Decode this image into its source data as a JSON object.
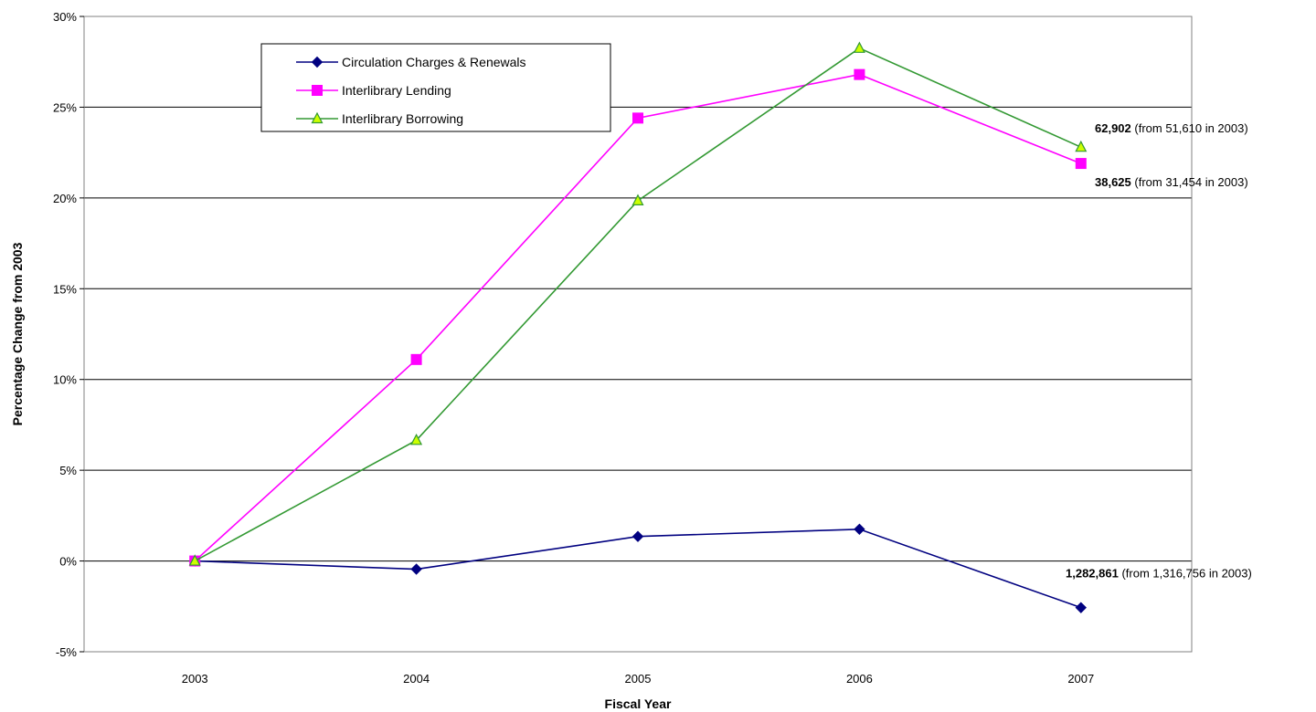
{
  "chart_data": {
    "type": "line",
    "xlabel": "Fiscal Year",
    "ylabel": "Percentage Change from 2003",
    "categories": [
      "2003",
      "2004",
      "2005",
      "2006",
      "2007"
    ],
    "ylim": [
      -5,
      30
    ],
    "y_ticks": [
      "-5%",
      "0%",
      "5%",
      "10%",
      "15%",
      "20%",
      "25%",
      "30%"
    ],
    "grid": "horizontal",
    "legend_position": "top-left",
    "series": [
      {
        "name": "Circulation Charges & Renewals",
        "values": [
          0,
          -0.45,
          1.35,
          1.75,
          -2.57
        ],
        "color": "#000080",
        "marker": "diamond"
      },
      {
        "name": "Interlibrary Lending",
        "values": [
          0,
          11.1,
          24.4,
          26.8,
          21.9
        ],
        "color": "#FF00FF",
        "marker": "square"
      },
      {
        "name": "Interlibrary Borrowing",
        "values": [
          0,
          6.65,
          19.85,
          28.25,
          22.8
        ],
        "color": "#339933",
        "marker": "triangle",
        "marker_fill": "#CCFF00"
      }
    ],
    "annotations": [
      {
        "bold": "62,902",
        "text": " (from 51,610 in 2003)"
      },
      {
        "bold": "38,625",
        "text": " (from 31,454 in 2003)"
      },
      {
        "bold": "1,282,861",
        "text": " (from 1,316,756 in 2003)"
      }
    ]
  }
}
